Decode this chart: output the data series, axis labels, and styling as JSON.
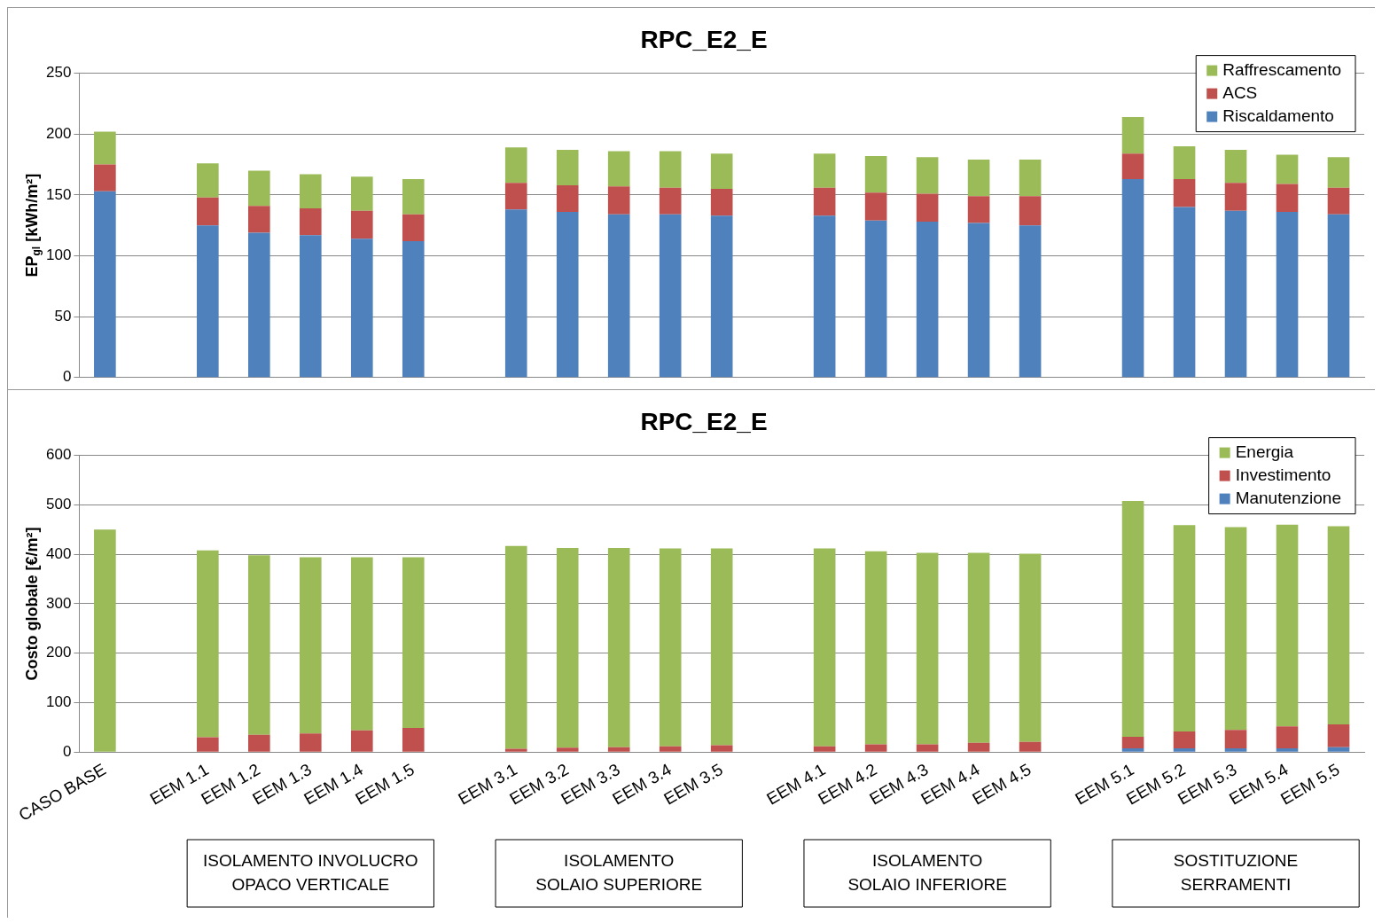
{
  "chart_data": [
    {
      "type": "bar",
      "title": "RPC_E2_E",
      "ylabel": "EP$_{gl}$ [kWh/m²]",
      "stacked": true,
      "grid": "y",
      "legend": "top right",
      "tick_labels": "y",
      "categories": [
        null,
        null,
        null,
        null,
        null,
        null,
        null,
        null,
        null,
        null,
        null,
        null,
        null,
        null,
        null,
        null,
        null,
        null,
        null,
        null,
        null,
        null,
        null,
        null,
        null
      ],
      "ylim": [
        0,
        250
      ],
      "yticks": [
        0,
        50,
        100,
        150,
        200,
        250
      ],
      "series": [
        {
          "name": "Riscaldamento",
          "color": "#4f81bd",
          "values": [
            153,
            null,
            125,
            119,
            117,
            114,
            112,
            null,
            138,
            136,
            134,
            134,
            133,
            null,
            133,
            129,
            128,
            127,
            125,
            null,
            163,
            140,
            137,
            136,
            134
          ]
        },
        {
          "name": "ACS",
          "color": "#c0504d",
          "values": [
            22,
            null,
            23,
            22,
            22,
            23,
            22,
            null,
            22,
            22,
            23,
            22,
            22,
            null,
            23,
            23,
            23,
            22,
            24,
            null,
            21,
            23,
            23,
            23,
            22
          ]
        },
        {
          "name": "Raffrescamento",
          "color": "#9bbb59",
          "values": [
            27,
            null,
            28,
            29,
            28,
            28,
            29,
            null,
            29,
            29,
            29,
            30,
            29,
            null,
            28,
            30,
            30,
            30,
            30,
            null,
            30,
            27,
            27,
            24,
            25
          ]
        }
      ]
    },
    {
      "type": "bar",
      "title": "RPC_E2_E",
      "ylabel": "Costo globale [€/m²]",
      "stacked": true,
      "grid": "y",
      "legend": "top right",
      "categories": [
        "CASO BASE",
        null,
        "EEM 1.1",
        "EEM 1.2",
        "EEM 1.3",
        "EEM 1.4",
        "EEM 1.5",
        null,
        "EEM 3.1",
        "EEM 3.2",
        "EEM 3.3",
        "EEM 3.4",
        "EEM 3.5",
        null,
        "EEM 4.1",
        "EEM 4.2",
        "EEM 4.3",
        "EEM 4.4",
        "EEM 4.5",
        null,
        "EEM 5.1",
        "EEM 5.2",
        "EEM 5.3",
        "EEM 5.4",
        "EEM 5.5"
      ],
      "ylim": [
        0,
        600
      ],
      "yticks": [
        0,
        100,
        200,
        300,
        400,
        500,
        600
      ],
      "annotations": [
        "ISOLAMENTO INVOLUCRO OPACO VERTICALE",
        "ISOLAMENTO SOLAIO SUPERIORE",
        "ISOLAMENTO SOLAIO INFERIORE",
        "SOSTITUZIONE SERRAMENTI"
      ],
      "series": [
        {
          "name": "Manutenzione",
          "color": "#4f81bd",
          "values": [
            0,
            null,
            0,
            0,
            0,
            0,
            0,
            null,
            0,
            0,
            0,
            0,
            0,
            null,
            0,
            0,
            0,
            0,
            0,
            null,
            8,
            8,
            8,
            8,
            10
          ]
        },
        {
          "name": "Investimento",
          "color": "#c0504d",
          "values": [
            0,
            null,
            30,
            35,
            38,
            44,
            49,
            null,
            7,
            9,
            10,
            12,
            14,
            null,
            12,
            16,
            16,
            19,
            21,
            null,
            23,
            34,
            37,
            44,
            46
          ]
        },
        {
          "name": "Energia",
          "color": "#9bbb59",
          "values": [
            450,
            null,
            378,
            363,
            356,
            350,
            345,
            null,
            410,
            404,
            403,
            400,
            398,
            null,
            400,
            390,
            387,
            384,
            380,
            null,
            477,
            417,
            410,
            408,
            401
          ]
        }
      ]
    }
  ]
}
